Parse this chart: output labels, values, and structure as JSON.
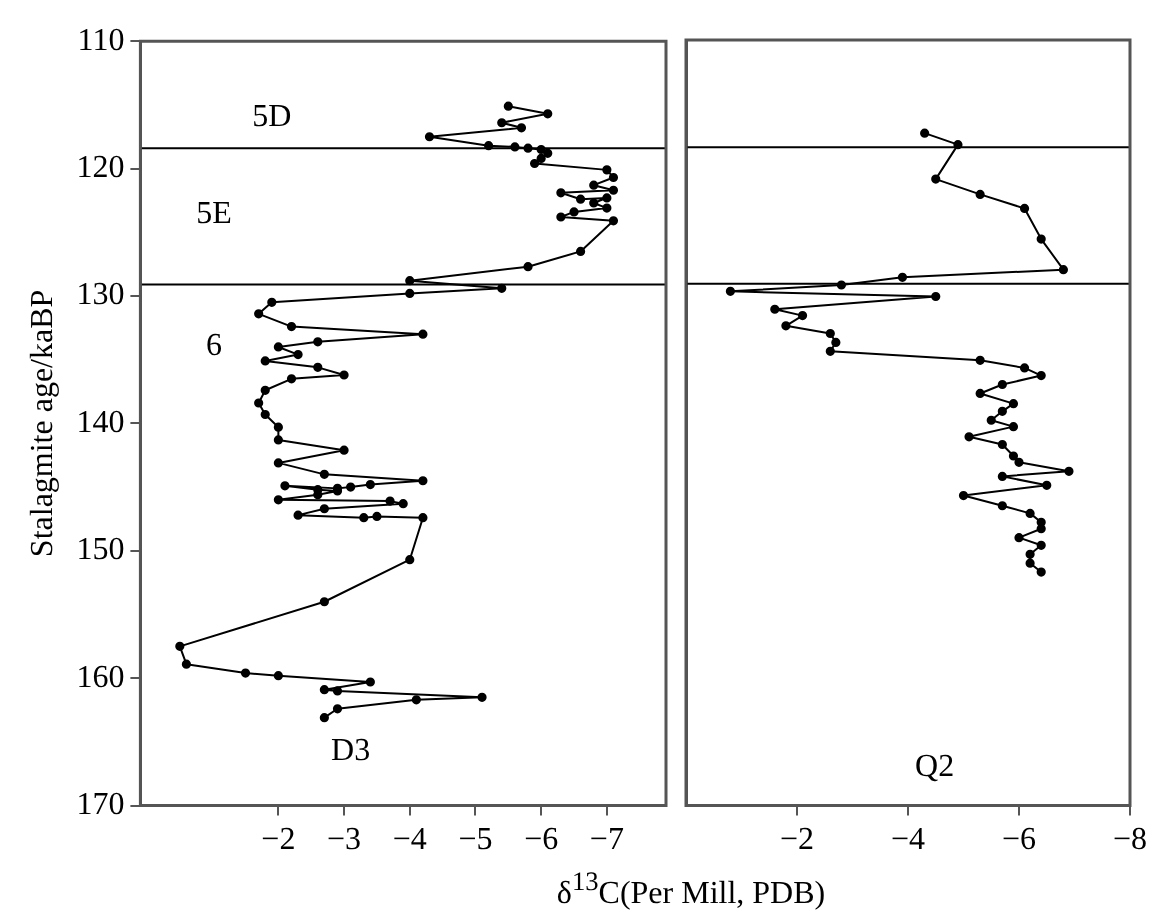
{
  "chart_data": [
    {
      "type": "line",
      "ylabel": "Stalagmite age/kaBP",
      "xlabel": "δ$^{13}$C(Per Mill, PDB)",
      "xlim": [
        0.1,
        -7.9
      ],
      "xticks": [
        -2,
        -3,
        -4,
        -5,
        -6,
        -7
      ],
      "ylim": [
        170,
        110
      ],
      "yticks": [
        110,
        120,
        130,
        140,
        150,
        160,
        170
      ],
      "grid": false,
      "legend": false,
      "marker": "circle",
      "line_style": "solid",
      "ref_lines": [
        {
          "axis": "y",
          "value": 118.4,
          "color": "#000000"
        },
        {
          "axis": "y",
          "value": 129.1,
          "color": "#000000"
        }
      ],
      "annotations": [
        "5D",
        "5E",
        "6",
        "D3"
      ],
      "series": [
        {
          "color": "#000000",
          "x": [
            -5.5,
            -6.1,
            -5.4,
            -5.7,
            -4.3,
            -5.2,
            -5.6,
            -5.8,
            -6.0,
            -6.1,
            -6.0,
            -5.9,
            -7.0,
            -7.1,
            -6.8,
            -7.1,
            -6.3,
            -6.6,
            -7.0,
            -6.8,
            -7.0,
            -6.5,
            -6.3,
            -7.1,
            -6.6,
            -5.8,
            -4.0,
            -5.4,
            -4.0,
            -1.9,
            -1.7,
            -2.2,
            -4.2,
            -2.6,
            -2.0,
            -2.3,
            -1.8,
            -2.6,
            -3.0,
            -2.2,
            -1.8,
            -1.7,
            -1.8,
            -2.0,
            -2.0,
            -3.0,
            -2.0,
            -2.7,
            -4.2,
            -3.4,
            -3.1,
            -2.9,
            -2.1,
            -2.6,
            -2.9,
            -2.6,
            -2.0,
            -3.7,
            -3.9,
            -2.7,
            -2.3,
            -3.3,
            -3.5,
            -4.2,
            -4.0,
            -2.7,
            -0.5,
            -0.6,
            -1.5,
            -2.0,
            -3.4,
            -2.7,
            -2.9,
            -5.1,
            -4.1,
            -2.9,
            -2.7
          ],
          "values": [
            115.1,
            115.7,
            116.4,
            116.8,
            117.5,
            118.2,
            118.3,
            118.4,
            118.5,
            118.8,
            119.2,
            119.6,
            120.1,
            120.7,
            121.3,
            121.7,
            121.9,
            122.4,
            122.3,
            122.7,
            123.1,
            123.4,
            123.8,
            124.1,
            126.5,
            127.7,
            128.8,
            129.4,
            129.8,
            130.5,
            131.4,
            132.4,
            133.0,
            133.6,
            134.0,
            134.6,
            135.1,
            135.6,
            136.2,
            136.5,
            137.4,
            138.4,
            139.3,
            140.3,
            141.3,
            142.1,
            143.1,
            144.0,
            144.5,
            144.8,
            145.0,
            145.1,
            144.9,
            145.2,
            145.3,
            145.6,
            146.0,
            146.1,
            146.3,
            146.7,
            147.2,
            147.4,
            147.3,
            147.4,
            150.7,
            154.0,
            157.5,
            158.9,
            159.6,
            159.8,
            160.3,
            160.9,
            161.0,
            161.5,
            161.7,
            162.4,
            163.1
          ]
        }
      ]
    },
    {
      "type": "line",
      "xlim": [
        0,
        -8
      ],
      "xticks": [
        -2,
        -4,
        -6,
        -8
      ],
      "ylim": [
        170,
        110
      ],
      "tick_labels": "x",
      "grid": false,
      "legend": false,
      "marker": "circle",
      "line_style": "solid",
      "ref_lines": [
        {
          "axis": "y",
          "value": 118.4,
          "color": "#000000"
        },
        {
          "axis": "y",
          "value": 129.1,
          "color": "#000000"
        }
      ],
      "annotations": [
        "Q2"
      ],
      "series": [
        {
          "color": "#000000",
          "x": [
            -4.3,
            -4.9,
            -4.5,
            -5.3,
            -6.1,
            -6.4,
            -6.8,
            -3.9,
            -2.8,
            -0.8,
            -4.5,
            -1.6,
            -2.1,
            -1.8,
            -2.6,
            -2.7,
            -2.6,
            -5.3,
            -6.1,
            -6.4,
            -5.7,
            -5.3,
            -5.9,
            -5.7,
            -5.5,
            -5.9,
            -5.1,
            -5.7,
            -5.9,
            -6.0,
            -6.9,
            -5.7,
            -6.5,
            -5.0,
            -5.7,
            -6.2,
            -6.4,
            -6.4,
            -6.0,
            -6.4,
            -6.2,
            -6.2,
            -6.4
          ],
          "values": [
            117.3,
            118.2,
            120.9,
            122.1,
            123.2,
            125.6,
            128.0,
            128.6,
            129.2,
            129.7,
            130.1,
            131.1,
            131.6,
            132.4,
            133.0,
            133.7,
            134.4,
            135.1,
            135.7,
            136.3,
            137.0,
            137.7,
            138.5,
            139.1,
            139.8,
            140.3,
            141.1,
            141.7,
            142.6,
            143.1,
            143.8,
            144.2,
            144.9,
            145.7,
            146.5,
            147.1,
            147.8,
            148.3,
            149.0,
            149.6,
            150.3,
            151.0,
            151.7
          ]
        }
      ]
    }
  ]
}
